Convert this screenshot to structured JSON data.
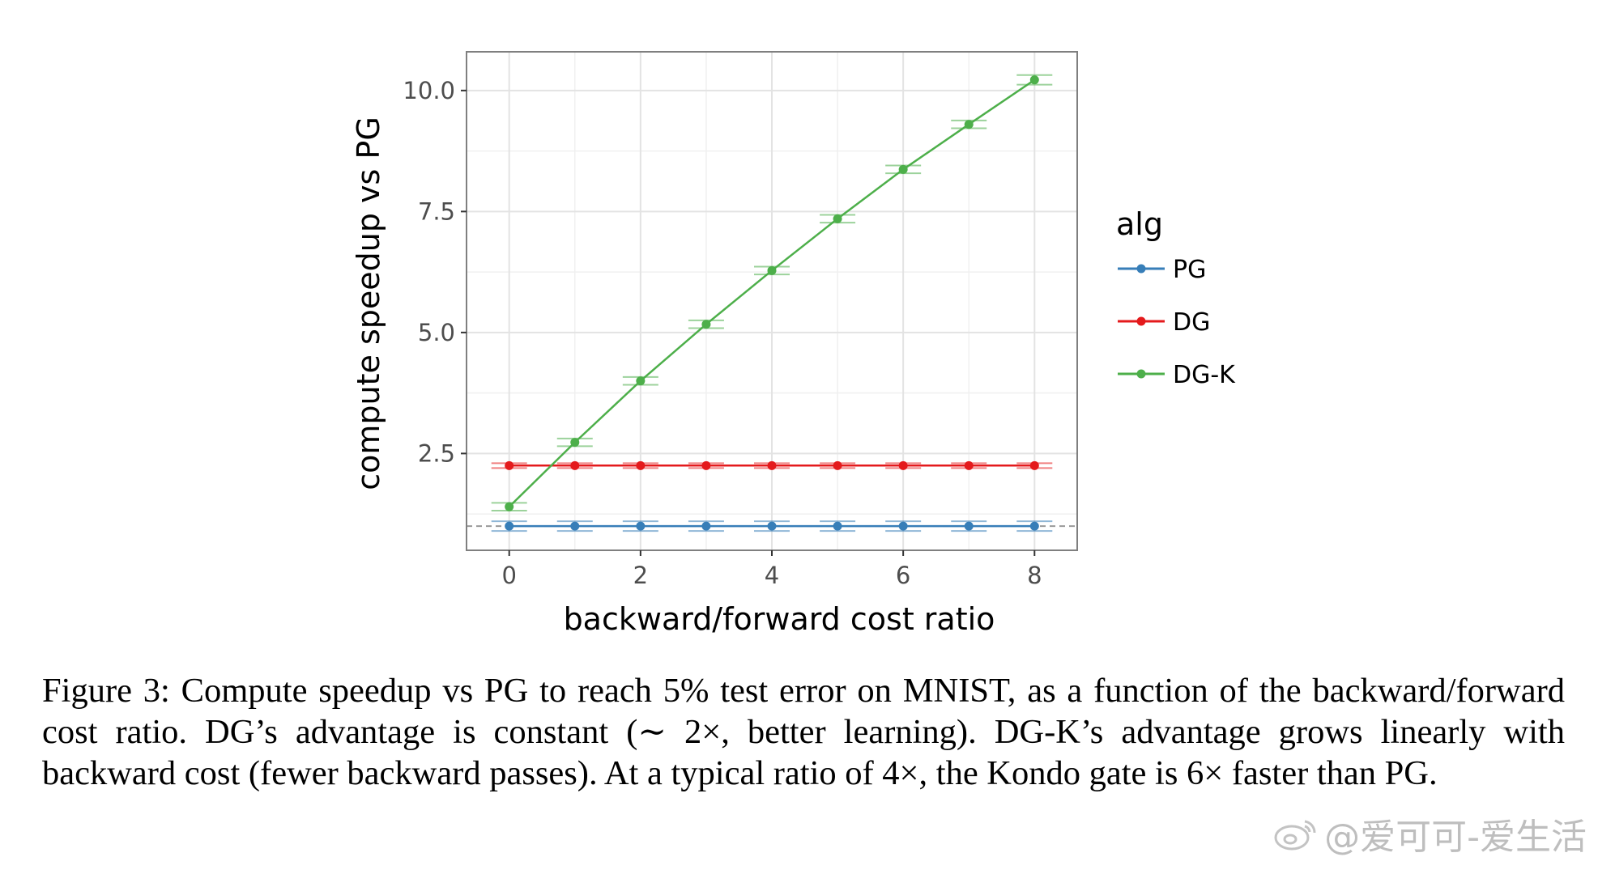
{
  "chart_data": {
    "type": "line",
    "xlabel": "backward/forward cost ratio",
    "ylabel": "compute speedup vs PG",
    "xlim": [
      -0.65,
      8.65
    ],
    "ylim": [
      0.5,
      10.8
    ],
    "x_ticks": [
      0,
      2,
      4,
      6,
      8
    ],
    "x_tick_labels": [
      "0",
      "2",
      "4",
      "6",
      "8"
    ],
    "y_ticks": [
      2.5,
      5.0,
      7.5,
      10.0
    ],
    "y_tick_labels": [
      "2.5",
      "5.0",
      "7.5",
      "10.0"
    ],
    "grid": true,
    "reference_line": {
      "y": 1.0,
      "style": "dashed",
      "color": "#999999"
    },
    "legend_title": "alg",
    "legend_position": "right",
    "x": [
      0,
      1,
      2,
      3,
      4,
      5,
      6,
      7,
      8
    ],
    "series": [
      {
        "name": "PG",
        "color": "#377eb8",
        "values": [
          1.0,
          1.0,
          1.0,
          1.0,
          1.0,
          1.0,
          1.0,
          1.0,
          1.0
        ],
        "error": [
          0.1,
          0.1,
          0.1,
          0.1,
          0.1,
          0.1,
          0.1,
          0.1,
          0.1
        ]
      },
      {
        "name": "DG",
        "color": "#e41a1c",
        "values": [
          2.25,
          2.25,
          2.25,
          2.25,
          2.25,
          2.25,
          2.25,
          2.25,
          2.25
        ],
        "error": [
          0.05,
          0.05,
          0.05,
          0.05,
          0.05,
          0.05,
          0.05,
          0.05,
          0.05
        ]
      },
      {
        "name": "DG-K",
        "color": "#4daf4a",
        "values": [
          1.4,
          2.73,
          4.0,
          5.17,
          6.28,
          7.35,
          8.37,
          9.3,
          10.22
        ],
        "error": [
          0.08,
          0.08,
          0.08,
          0.08,
          0.08,
          0.08,
          0.08,
          0.08,
          0.1
        ]
      }
    ]
  },
  "caption": "Figure 3: Compute speedup vs PG to reach 5% test error on MNIST, as a function of the backward/forward cost ratio. DG’s advantage is constant (∼ 2×, better learning). DG-K’s advantage grows linearly with backward cost (fewer backward passes). At a typical ratio of 4×, the Kondo gate is 6× faster than PG.",
  "watermark": "@爱可可-爱生活"
}
